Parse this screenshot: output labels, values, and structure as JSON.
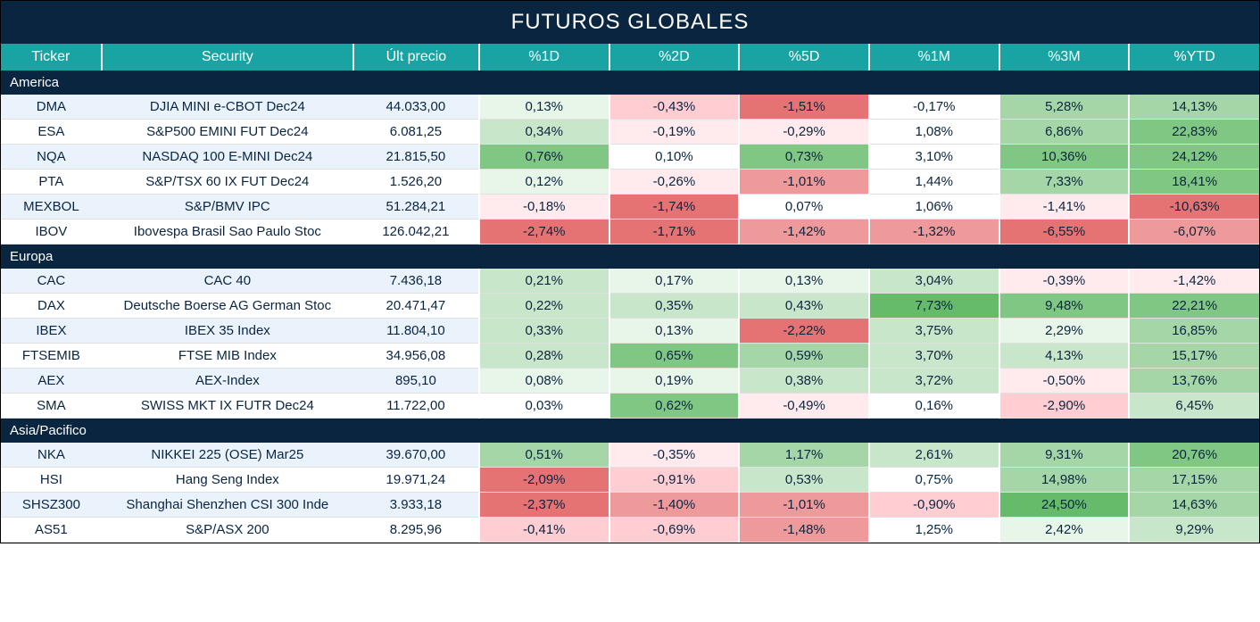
{
  "title": "FUTUROS GLOBALES",
  "headers": [
    "Ticker",
    "Security",
    "Últ precio",
    "%1D",
    "%2D",
    "%5D",
    "%1M",
    "%3M",
    "%YTD"
  ],
  "colors": {
    "title_bg": "#0a2540",
    "header_bg": "#1aa3a3",
    "text": "#0a2540",
    "white": "#ffffff"
  },
  "heatmap": {
    "neg_strong": "#e57373",
    "neg_med": "#ef9a9a",
    "neg_light": "#ffcdd2",
    "neg_vlight": "#ffebee",
    "neutral": "#ffffff",
    "pos_vlight": "#e8f5e9",
    "pos_light": "#c8e6c9",
    "pos_med": "#a5d6a7",
    "pos_strong": "#81c784",
    "pos_vstrong": "#66bb6a"
  },
  "regions": [
    {
      "name": "America",
      "rows": [
        {
          "ticker": "DMA",
          "security": "DJIA MINI e-CBOT  Dec24",
          "price": "44.033,00",
          "pcts": [
            {
              "v": "0,13%",
              "c": "pos_vlight"
            },
            {
              "v": "-0,43%",
              "c": "neg_light"
            },
            {
              "v": "-1,51%",
              "c": "neg_strong"
            },
            {
              "v": "-0,17%",
              "c": "neutral"
            },
            {
              "v": "5,28%",
              "c": "pos_med"
            },
            {
              "v": "14,13%",
              "c": "pos_med"
            }
          ]
        },
        {
          "ticker": "ESA",
          "security": "S&P500 EMINI FUT  Dec24",
          "price": "6.081,25",
          "pcts": [
            {
              "v": "0,34%",
              "c": "pos_light"
            },
            {
              "v": "-0,19%",
              "c": "neg_vlight"
            },
            {
              "v": "-0,29%",
              "c": "neg_vlight"
            },
            {
              "v": "1,08%",
              "c": "neutral"
            },
            {
              "v": "6,86%",
              "c": "pos_med"
            },
            {
              "v": "22,83%",
              "c": "pos_strong"
            }
          ]
        },
        {
          "ticker": "NQA",
          "security": "NASDAQ 100 E-MINI Dec24",
          "price": "21.815,50",
          "pcts": [
            {
              "v": "0,76%",
              "c": "pos_strong"
            },
            {
              "v": "0,10%",
              "c": "neutral"
            },
            {
              "v": "0,73%",
              "c": "pos_strong"
            },
            {
              "v": "3,10%",
              "c": "neutral"
            },
            {
              "v": "10,36%",
              "c": "pos_strong"
            },
            {
              "v": "24,12%",
              "c": "pos_strong"
            }
          ]
        },
        {
          "ticker": "PTA",
          "security": "S&P/TSX 60 IX FUT Dec24",
          "price": "1.526,20",
          "pcts": [
            {
              "v": "0,12%",
              "c": "pos_vlight"
            },
            {
              "v": "-0,26%",
              "c": "neg_vlight"
            },
            {
              "v": "-1,01%",
              "c": "neg_med"
            },
            {
              "v": "1,44%",
              "c": "neutral"
            },
            {
              "v": "7,33%",
              "c": "pos_med"
            },
            {
              "v": "18,41%",
              "c": "pos_strong"
            }
          ]
        },
        {
          "ticker": "MEXBOL",
          "security": "S&P/BMV IPC",
          "price": "51.284,21",
          "pcts": [
            {
              "v": "-0,18%",
              "c": "neg_vlight"
            },
            {
              "v": "-1,74%",
              "c": "neg_strong"
            },
            {
              "v": "0,07%",
              "c": "neutral"
            },
            {
              "v": "1,06%",
              "c": "neutral"
            },
            {
              "v": "-1,41%",
              "c": "neg_vlight"
            },
            {
              "v": "-10,63%",
              "c": "neg_strong"
            }
          ]
        },
        {
          "ticker": "IBOV",
          "security": "Ibovespa Brasil Sao Paulo Stoc",
          "price": "126.042,21",
          "pcts": [
            {
              "v": "-2,74%",
              "c": "neg_strong"
            },
            {
              "v": "-1,71%",
              "c": "neg_strong"
            },
            {
              "v": "-1,42%",
              "c": "neg_med"
            },
            {
              "v": "-1,32%",
              "c": "neg_med"
            },
            {
              "v": "-6,55%",
              "c": "neg_strong"
            },
            {
              "v": "-6,07%",
              "c": "neg_med"
            }
          ]
        }
      ]
    },
    {
      "name": "Europa",
      "rows": [
        {
          "ticker": "CAC",
          "security": "CAC 40",
          "price": "7.436,18",
          "pcts": [
            {
              "v": "0,21%",
              "c": "pos_light"
            },
            {
              "v": "0,17%",
              "c": "pos_vlight"
            },
            {
              "v": "0,13%",
              "c": "pos_vlight"
            },
            {
              "v": "3,04%",
              "c": "pos_light"
            },
            {
              "v": "-0,39%",
              "c": "neg_vlight"
            },
            {
              "v": "-1,42%",
              "c": "neg_vlight"
            }
          ]
        },
        {
          "ticker": "DAX",
          "security": "Deutsche Boerse AG German Stoc",
          "price": "20.471,47",
          "pcts": [
            {
              "v": "0,22%",
              "c": "pos_light"
            },
            {
              "v": "0,35%",
              "c": "pos_light"
            },
            {
              "v": "0,43%",
              "c": "pos_light"
            },
            {
              "v": "7,73%",
              "c": "pos_vstrong"
            },
            {
              "v": "9,48%",
              "c": "pos_strong"
            },
            {
              "v": "22,21%",
              "c": "pos_strong"
            }
          ]
        },
        {
          "ticker": "IBEX",
          "security": "IBEX 35 Index",
          "price": "11.804,10",
          "pcts": [
            {
              "v": "0,33%",
              "c": "pos_light"
            },
            {
              "v": "0,13%",
              "c": "pos_vlight"
            },
            {
              "v": "-2,22%",
              "c": "neg_strong"
            },
            {
              "v": "3,75%",
              "c": "pos_light"
            },
            {
              "v": "2,29%",
              "c": "pos_vlight"
            },
            {
              "v": "16,85%",
              "c": "pos_med"
            }
          ]
        },
        {
          "ticker": "FTSEMIB",
          "security": "FTSE MIB Index",
          "price": "34.956,08",
          "pcts": [
            {
              "v": "0,28%",
              "c": "pos_light"
            },
            {
              "v": "0,65%",
              "c": "pos_strong"
            },
            {
              "v": "0,59%",
              "c": "pos_med"
            },
            {
              "v": "3,70%",
              "c": "pos_light"
            },
            {
              "v": "4,13%",
              "c": "pos_light"
            },
            {
              "v": "15,17%",
              "c": "pos_med"
            }
          ]
        },
        {
          "ticker": "AEX",
          "security": "AEX-Index",
          "price": "895,10",
          "pcts": [
            {
              "v": "0,08%",
              "c": "pos_vlight"
            },
            {
              "v": "0,19%",
              "c": "pos_vlight"
            },
            {
              "v": "0,38%",
              "c": "pos_light"
            },
            {
              "v": "3,72%",
              "c": "pos_light"
            },
            {
              "v": "-0,50%",
              "c": "neg_vlight"
            },
            {
              "v": "13,76%",
              "c": "pos_med"
            }
          ]
        },
        {
          "ticker": "SMA",
          "security": "SWISS MKT IX FUTR Dec24",
          "price": "11.722,00",
          "pcts": [
            {
              "v": "0,03%",
              "c": "neutral"
            },
            {
              "v": "0,62%",
              "c": "pos_strong"
            },
            {
              "v": "-0,49%",
              "c": "neg_vlight"
            },
            {
              "v": "0,16%",
              "c": "neutral"
            },
            {
              "v": "-2,90%",
              "c": "neg_light"
            },
            {
              "v": "6,45%",
              "c": "pos_light"
            }
          ]
        }
      ]
    },
    {
      "name": "Asia/Pacifico",
      "rows": [
        {
          "ticker": "NKA",
          "security": "NIKKEI 225  (OSE) Mar25",
          "price": "39.670,00",
          "pcts": [
            {
              "v": "0,51%",
              "c": "pos_med"
            },
            {
              "v": "-0,35%",
              "c": "neg_vlight"
            },
            {
              "v": "1,17%",
              "c": "pos_med"
            },
            {
              "v": "2,61%",
              "c": "pos_light"
            },
            {
              "v": "9,31%",
              "c": "pos_med"
            },
            {
              "v": "20,76%",
              "c": "pos_strong"
            }
          ]
        },
        {
          "ticker": "HSI",
          "security": "Hang Seng Index",
          "price": "19.971,24",
          "pcts": [
            {
              "v": "-2,09%",
              "c": "neg_strong"
            },
            {
              "v": "-0,91%",
              "c": "neg_light"
            },
            {
              "v": "0,53%",
              "c": "pos_light"
            },
            {
              "v": "0,75%",
              "c": "neutral"
            },
            {
              "v": "14,98%",
              "c": "pos_med"
            },
            {
              "v": "17,15%",
              "c": "pos_med"
            }
          ]
        },
        {
          "ticker": "SHSZ300",
          "security": "Shanghai Shenzhen CSI 300 Inde",
          "price": "3.933,18",
          "pcts": [
            {
              "v": "-2,37%",
              "c": "neg_strong"
            },
            {
              "v": "-1,40%",
              "c": "neg_med"
            },
            {
              "v": "-1,01%",
              "c": "neg_med"
            },
            {
              "v": "-0,90%",
              "c": "neg_light"
            },
            {
              "v": "24,50%",
              "c": "pos_vstrong"
            },
            {
              "v": "14,63%",
              "c": "pos_med"
            }
          ]
        },
        {
          "ticker": "AS51",
          "security": "S&P/ASX 200",
          "price": "8.295,96",
          "pcts": [
            {
              "v": "-0,41%",
              "c": "neg_light"
            },
            {
              "v": "-0,69%",
              "c": "neg_light"
            },
            {
              "v": "-1,48%",
              "c": "neg_med"
            },
            {
              "v": "1,25%",
              "c": "neutral"
            },
            {
              "v": "2,42%",
              "c": "pos_vlight"
            },
            {
              "v": "9,29%",
              "c": "pos_light"
            }
          ]
        }
      ]
    }
  ]
}
